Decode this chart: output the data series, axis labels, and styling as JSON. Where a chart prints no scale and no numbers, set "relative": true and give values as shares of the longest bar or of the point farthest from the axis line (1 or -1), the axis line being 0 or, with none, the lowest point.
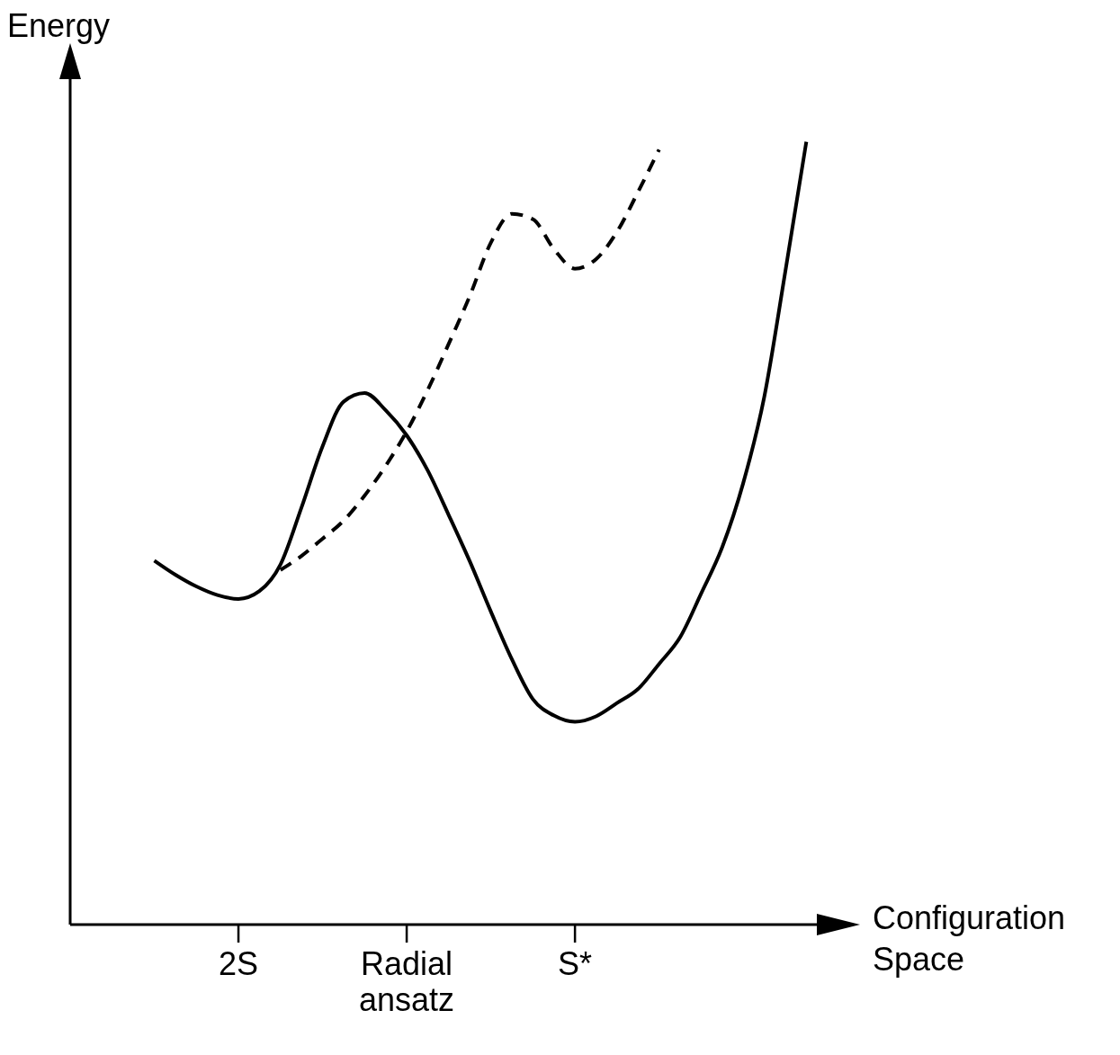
{
  "chart_data": {
    "type": "line",
    "relative": true,
    "xlabel": "Configuration Space",
    "ylabel": "Energy",
    "grid": false,
    "categories": [
      null,
      null,
      null,
      null,
      null,
      null,
      null,
      "2S",
      null,
      null,
      null,
      null,
      null,
      null,
      null,
      "Radial ansatz",
      null,
      null,
      null,
      null,
      null,
      null,
      null,
      "S*",
      null,
      null,
      null,
      null,
      null,
      null,
      null,
      null,
      null,
      null,
      null
    ],
    "series": [
      {
        "color": "#000000",
        "line_style": "solid",
        "values": [
          null,
          null,
          null,
          0.465,
          0.447,
          0.432,
          0.421,
          0.416,
          0.426,
          0.46,
          0.533,
          0.611,
          0.668,
          0.679,
          0.657,
          0.625,
          0.58,
          0.523,
          0.464,
          0.4,
          0.339,
          0.288,
          0.267,
          0.259,
          0.266,
          0.283,
          0.301,
          0.333,
          0.367,
          0.423,
          0.482,
          0.564,
          0.674,
          0.834,
          1.0
        ]
      },
      {
        "color": "#000000",
        "line_style": "dashed",
        "values": [
          null,
          null,
          null,
          null,
          null,
          null,
          null,
          null,
          null,
          0.453,
          0.471,
          0.493,
          0.516,
          0.548,
          0.586,
          0.63,
          0.683,
          0.742,
          0.803,
          0.871,
          0.908,
          0.901,
          0.863,
          0.838,
          0.85,
          0.885,
          0.936,
          0.99,
          null,
          null,
          null,
          null,
          null,
          null,
          null
        ]
      }
    ]
  }
}
